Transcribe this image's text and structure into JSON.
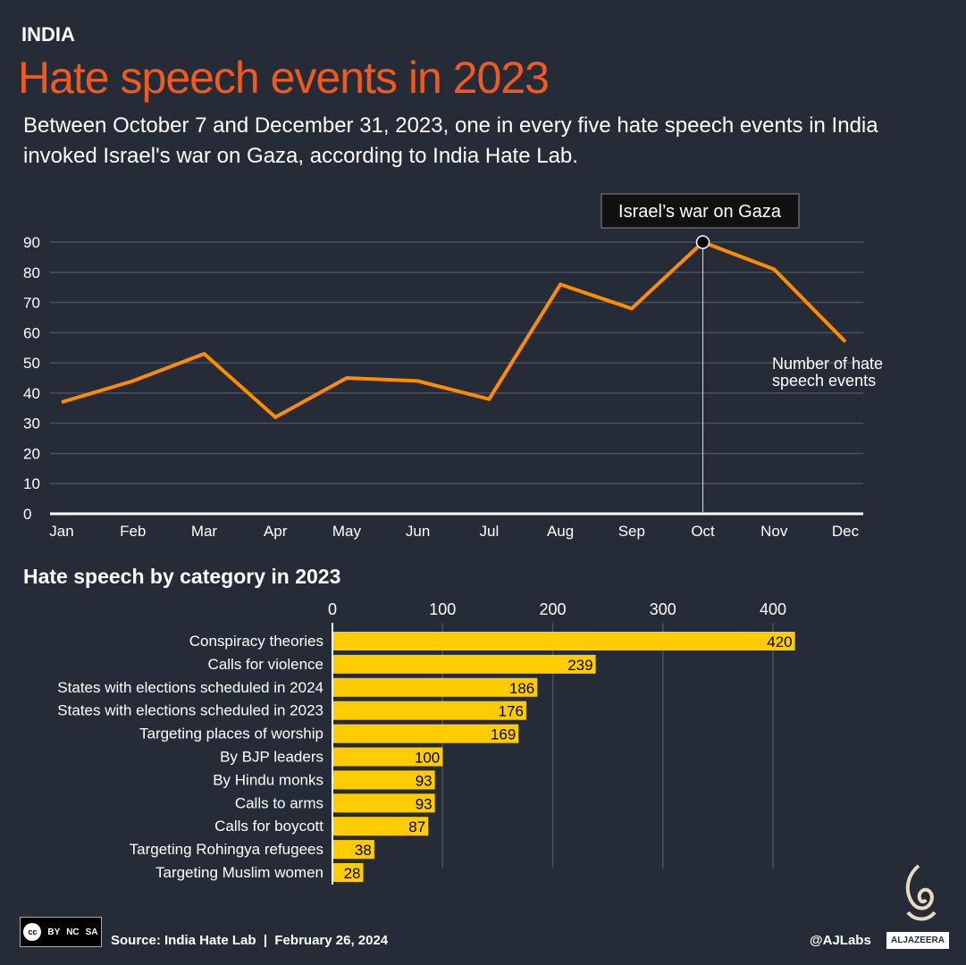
{
  "header": {
    "kicker": "INDIA",
    "title": "Hate speech events in 2023",
    "subtitle": "Between October 7 and December 31, 2023, one in every five hate speech events in India invoked Israel's war on Gaza, according to India Hate Lab."
  },
  "colors": {
    "background": "#262c37",
    "title": "#f05a1e",
    "line": "#ff8c00",
    "bars": "#ffcc00"
  },
  "chart_data": [
    {
      "type": "line",
      "categories": [
        "Jan",
        "Feb",
        "Mar",
        "Apr",
        "May",
        "Jun",
        "Jul",
        "Aug",
        "Sep",
        "Oct",
        "Nov",
        "Dec"
      ],
      "values": [
        37,
        44,
        53,
        32,
        45,
        44,
        38,
        76,
        68,
        90,
        81,
        57
      ],
      "series_label": "Number of hate speech events",
      "annotation": {
        "label": "Israel’s war on Gaza",
        "at": "Oct"
      },
      "yticks": [
        0,
        10,
        20,
        30,
        40,
        50,
        60,
        70,
        80,
        90
      ],
      "ylim": [
        0,
        90
      ],
      "grid": true
    },
    {
      "type": "bar",
      "orientation": "horizontal",
      "title": "Hate speech by category in 2023",
      "categories": [
        "Conspiracy theories",
        "Calls for violence",
        "States with elections scheduled in 2024",
        "States with elections scheduled in 2023",
        "Targeting places of worship",
        "By BJP leaders",
        "By Hindu monks",
        "Calls to arms",
        "Calls for boycott",
        "Targeting Rohingya refugees",
        "Targeting Muslim women"
      ],
      "values": [
        420,
        239,
        186,
        176,
        169,
        100,
        93,
        93,
        87,
        38,
        28
      ],
      "xticks": [
        0,
        100,
        200,
        300,
        400
      ],
      "xlim": [
        0,
        450
      ],
      "grid": true
    }
  ],
  "footer": {
    "source": "Source: India Hate Lab  |  February 26, 2024",
    "handle": "@AJLabs",
    "brand": "ALJAZEERA",
    "license": [
      "BY",
      "NC",
      "SA"
    ]
  }
}
